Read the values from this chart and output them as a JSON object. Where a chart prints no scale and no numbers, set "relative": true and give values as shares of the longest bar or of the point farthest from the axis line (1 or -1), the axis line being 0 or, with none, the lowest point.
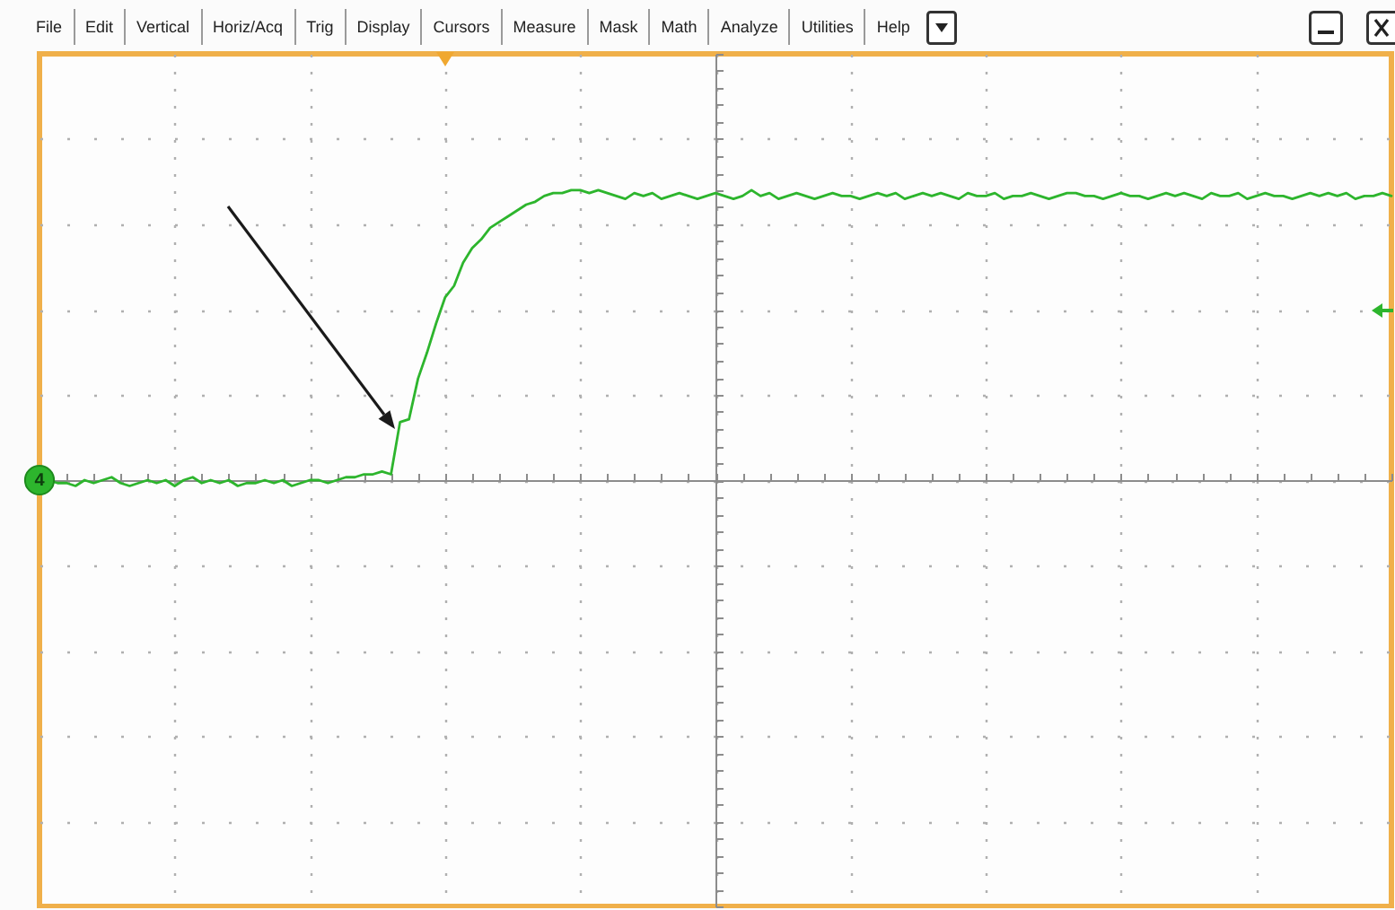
{
  "chart_data": {
    "type": "line",
    "relative": true,
    "grid": true,
    "categories": [
      null,
      null,
      null,
      null,
      null,
      null,
      null,
      null,
      null,
      null,
      null,
      null,
      null,
      null,
      null,
      null,
      null,
      null,
      null,
      null,
      null,
      null,
      null,
      null,
      null,
      null,
      null,
      null,
      null,
      null,
      null,
      null,
      null,
      null,
      null,
      null,
      null,
      null,
      null,
      null,
      null,
      null,
      null,
      null,
      null,
      null,
      null,
      null,
      null,
      null,
      null,
      null,
      null,
      null,
      null,
      null,
      null,
      null,
      null,
      null,
      null,
      null,
      null,
      null,
      null,
      null,
      null,
      null,
      null,
      null,
      null,
      null,
      null,
      null,
      null,
      null,
      null,
      null,
      null,
      null,
      null,
      null,
      null,
      null,
      null,
      null,
      null,
      null,
      null,
      null,
      null,
      null,
      null,
      null,
      null,
      null,
      null,
      null,
      null,
      null,
      null,
      null,
      null,
      null,
      null,
      null,
      null,
      null,
      null,
      null,
      null,
      null,
      null,
      null,
      null,
      null,
      null,
      null,
      null,
      null,
      null,
      null,
      null,
      null,
      null,
      null,
      null,
      null,
      null,
      null,
      null,
      null,
      null,
      null,
      null,
      null,
      null,
      null,
      null,
      null,
      null,
      null,
      null,
      null,
      null,
      null,
      null,
      null,
      null,
      null,
      null
    ],
    "series": [
      {
        "color": "#2db52d",
        "values": [
          null,
          0,
          -0.01,
          -0.01,
          -0.02,
          0,
          -0.01,
          0,
          0.01,
          -0.01,
          -0.02,
          -0.01,
          0,
          -0.01,
          0,
          -0.02,
          0,
          0.01,
          -0.01,
          0,
          -0.01,
          0,
          -0.02,
          -0.01,
          -0.01,
          0,
          -0.01,
          0,
          -0.02,
          -0.01,
          0,
          0,
          -0.01,
          0,
          0.01,
          0.01,
          0.02,
          0.02,
          0.03,
          0.02,
          0.2,
          0.21,
          0.35,
          0.44,
          0.54,
          0.63,
          0.67,
          0.75,
          0.8,
          0.83,
          0.87,
          0.89,
          0.91,
          0.93,
          0.95,
          0.96,
          0.98,
          0.99,
          0.99,
          1,
          1,
          0.99,
          1,
          0.99,
          0.98,
          0.97,
          0.99,
          0.98,
          0.99,
          0.97,
          0.98,
          0.99,
          0.98,
          0.97,
          0.98,
          0.99,
          0.98,
          0.97,
          0.98,
          1,
          0.98,
          0.99,
          0.97,
          0.98,
          0.99,
          0.98,
          0.97,
          0.98,
          0.99,
          0.98,
          0.98,
          0.97,
          0.98,
          0.99,
          0.98,
          0.99,
          0.97,
          0.98,
          0.99,
          0.98,
          0.99,
          0.98,
          0.97,
          0.99,
          0.98,
          0.98,
          0.99,
          0.97,
          0.98,
          0.98,
          0.99,
          0.98,
          0.97,
          0.98,
          0.99,
          0.99,
          0.98,
          0.98,
          0.97,
          0.98,
          0.99,
          0.98,
          0.98,
          0.97,
          0.98,
          0.99,
          0.98,
          0.99,
          0.98,
          0.97,
          0.99,
          0.98,
          0.98,
          0.99,
          0.97,
          0.98,
          0.99,
          0.98,
          0.98,
          0.97,
          0.98,
          0.99,
          0.98,
          0.99,
          0.98,
          0.99,
          0.97,
          0.98,
          0.98,
          0.99,
          0.98
        ]
      }
    ],
    "annotations": [
      {
        "text": "4",
        "y": 0
      },
      "File",
      "Edit",
      "Vertical",
      "Horiz/Acq",
      "Trig",
      "Display",
      "Cursors",
      "Measure",
      "Mask",
      "Math",
      "Analyze",
      "Utilities",
      "Help"
    ]
  }
}
